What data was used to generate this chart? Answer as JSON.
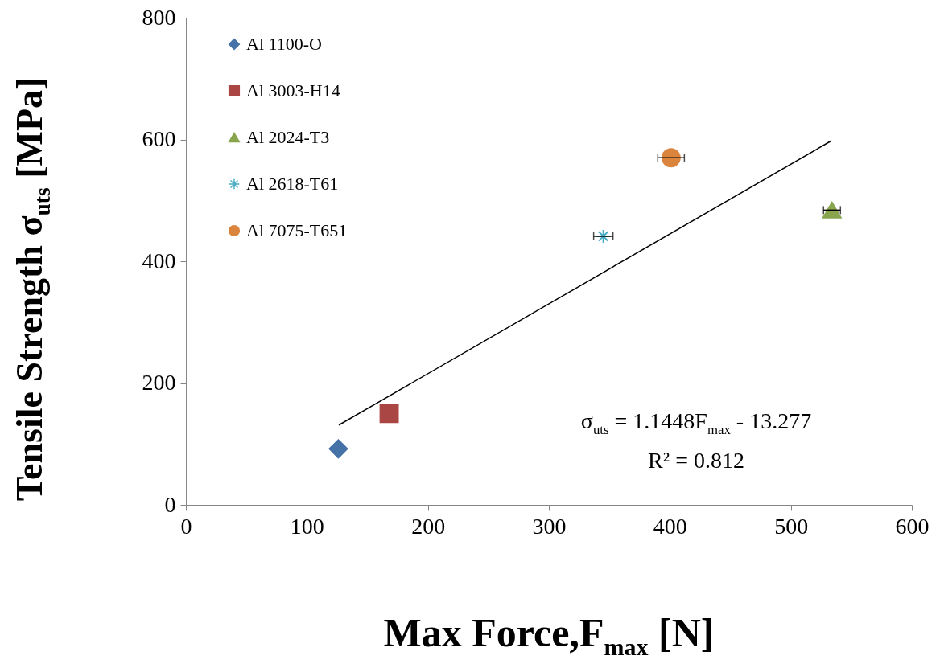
{
  "chart_data": {
    "type": "scatter",
    "xlabel": "Max Force,F$_{max}$ [N]",
    "ylabel": "Tensile Strength σ$_{uts}$ [MPa]",
    "xlim": [
      0,
      600
    ],
    "xticks": [
      0,
      100,
      200,
      300,
      400,
      500,
      600
    ],
    "ylim": [
      0,
      800
    ],
    "yticks": [
      0,
      200,
      400,
      600,
      800
    ],
    "legend": "top left",
    "series": [
      {
        "name": "Al 1100-O",
        "color": "#4572a7",
        "marker": "diamond",
        "x": [
          126
        ],
        "values": [
          92
        ]
      },
      {
        "name": "Al 3003-H14",
        "color": "#aa4643",
        "marker": "square",
        "x": [
          168
        ],
        "values": [
          150
        ]
      },
      {
        "name": "Al 2024-T3",
        "color": "#89a54e",
        "marker": "triangle",
        "x": [
          534
        ],
        "values": [
          484
        ],
        "xerrors": [
          7
        ]
      },
      {
        "name": "Al 2618-T61",
        "color": "#4bacc6",
        "marker": "cross",
        "x": [
          345
        ],
        "values": [
          441
        ],
        "xerrors": [
          8
        ]
      },
      {
        "name": "Al 7075-T651",
        "color": "#db843d",
        "marker": "circle",
        "x": [
          401
        ],
        "values": [
          570
        ],
        "xerrors": [
          11
        ]
      },
      {
        "type": "line",
        "color": "#000000",
        "marker": "none",
        "x": [
          126.4,
          533.6
        ],
        "values": [
          131,
          598
        ]
      }
    ],
    "annotations": [
      "σ$_{uts}$ = 1.1448F$_{max}$ - 13.277",
      "R² = 0.812"
    ]
  }
}
